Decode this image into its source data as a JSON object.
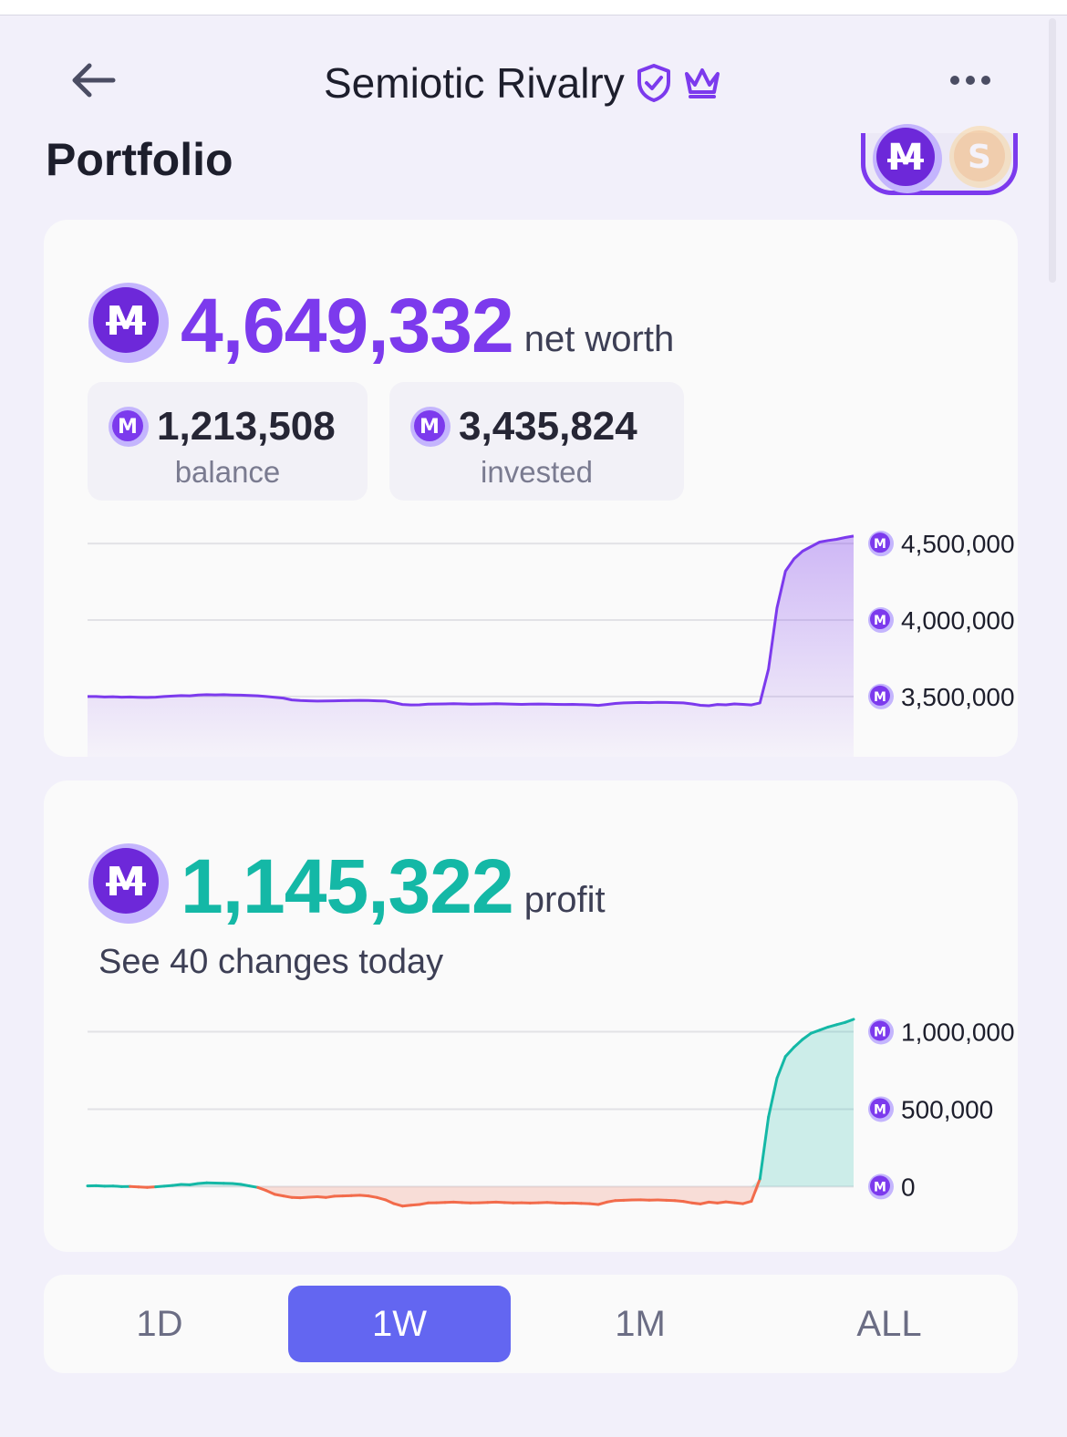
{
  "header": {
    "title": "Semiotic Rivalry",
    "back_icon": "arrow-left-icon",
    "verified_icon": "shield-check-icon",
    "crown_icon": "crown-icon",
    "menu_icon": "more-horizontal-icon"
  },
  "page": {
    "heading": "Portfolio",
    "currency_toggle": {
      "selected": "M",
      "options": [
        "M",
        "S"
      ]
    }
  },
  "net_worth_card": {
    "value": "4,649,332",
    "suffix": "net worth",
    "balance": {
      "value": "1,213,508",
      "label": "balance"
    },
    "invested": {
      "value": "3,435,824",
      "label": "invested"
    }
  },
  "profit_card": {
    "value": "1,145,322",
    "suffix": "profit",
    "changes_link": "See 40 changes today"
  },
  "time_tabs": {
    "items": [
      "1D",
      "1W",
      "1M",
      "ALL"
    ],
    "selected": "1W"
  },
  "colors": {
    "accent_purple": "#7c3aed",
    "profit_green": "#14b8a6",
    "loss_red": "#f26b4b",
    "tab_active": "#6366f1",
    "background": "#f2f0fa"
  },
  "chart_data": [
    {
      "type": "area",
      "series": [
        {
          "values": [
            3500000,
            3500000,
            3497000,
            3499000,
            3496000,
            3497000,
            3495000,
            3494000,
            3496000,
            3500000,
            3503000,
            3506000,
            3505000,
            3510000,
            3512000,
            3511000,
            3512000,
            3510000,
            3509000,
            3507000,
            3505000,
            3500000,
            3495000,
            3490000,
            3478000,
            3474000,
            3472000,
            3470000,
            3471000,
            3472000,
            3473000,
            3474000,
            3475000,
            3474000,
            3472000,
            3470000,
            3460000,
            3448000,
            3445000,
            3446000,
            3450000,
            3451000,
            3452000,
            3453000,
            3452000,
            3450000,
            3451000,
            3452000,
            3453000,
            3452000,
            3450000,
            3449000,
            3450000,
            3451000,
            3450000,
            3449000,
            3448000,
            3449000,
            3447000,
            3446000,
            3442000,
            3448000,
            3455000,
            3458000,
            3460000,
            3461000,
            3460000,
            3462000,
            3461000,
            3460000,
            3458000,
            3452000,
            3443000,
            3440000,
            3448000,
            3446000,
            3452000,
            3449000,
            3445000,
            3458000,
            3680000,
            4080000,
            4320000,
            4400000,
            4450000,
            4480000,
            4510000,
            4520000,
            4528000,
            4540000,
            4549000
          ],
          "labels_visible": false
        }
      ],
      "yticks": [
        "4,500,000",
        "4,000,000",
        "3,500,000"
      ],
      "ylim": [
        3100000,
        4650000
      ],
      "grid": true
    },
    {
      "type": "area",
      "series": [
        {
          "values": [
            5000,
            6000,
            3000,
            4000,
            0,
            1000,
            -2000,
            -5000,
            -1000,
            3000,
            8000,
            14000,
            12000,
            20000,
            25000,
            23000,
            22000,
            20000,
            15000,
            5000,
            -5000,
            -25000,
            -50000,
            -60000,
            -70000,
            -72000,
            -68000,
            -65000,
            -70000,
            -62000,
            -60000,
            -58000,
            -56000,
            -60000,
            -70000,
            -85000,
            -110000,
            -125000,
            -120000,
            -115000,
            -105000,
            -104000,
            -102000,
            -100000,
            -103000,
            -105000,
            -104000,
            -102000,
            -100000,
            -103000,
            -105000,
            -104000,
            -106000,
            -104000,
            -102000,
            -105000,
            -107000,
            -106000,
            -108000,
            -110000,
            -115000,
            -100000,
            -90000,
            -88000,
            -86000,
            -85000,
            -87000,
            -86000,
            -88000,
            -90000,
            -95000,
            -105000,
            -112000,
            -100000,
            -106000,
            -98000,
            -104000,
            -110000,
            -94000,
            50000,
            450000,
            700000,
            840000,
            900000,
            950000,
            990000,
            1010000,
            1030000,
            1045000,
            1060000,
            1080000
          ],
          "labels_visible": false
        }
      ],
      "yticks": [
        "1,000,000",
        "500,000",
        "0"
      ],
      "ylim": [
        -180000,
        1150000
      ],
      "grid": true
    }
  ]
}
